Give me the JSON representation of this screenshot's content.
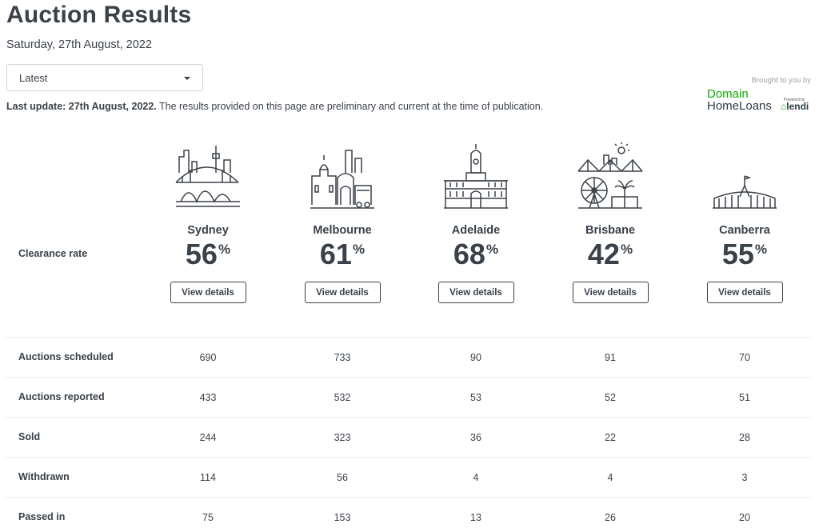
{
  "page": {
    "title": "Auction Results",
    "date": "Saturday, 27th August, 2022"
  },
  "filter": {
    "selected": "Latest"
  },
  "sponsor": {
    "brought_text": "Brought to you by",
    "logo_line1": "Domain",
    "logo_line2": "HomeLoans",
    "powered_text": "Powered by",
    "partner": "lendi"
  },
  "update": {
    "label": "Last update: 27th August, 2022.",
    "text": " The results provided on this page are preliminary and current at the time of publication."
  },
  "clearance_label": "Clearance rate",
  "view_label": "View details",
  "percent_sign": "%",
  "cities": [
    {
      "name": "Sydney",
      "rate": "56",
      "icon": "sydney-skyline-icon"
    },
    {
      "name": "Melbourne",
      "rate": "61",
      "icon": "melbourne-skyline-icon"
    },
    {
      "name": "Adelaide",
      "rate": "68",
      "icon": "adelaide-building-icon"
    },
    {
      "name": "Brisbane",
      "rate": "42",
      "icon": "brisbane-skyline-icon"
    },
    {
      "name": "Canberra",
      "rate": "55",
      "icon": "canberra-parliament-icon"
    }
  ],
  "stats": [
    {
      "label": "Auctions scheduled",
      "values": [
        "690",
        "733",
        "90",
        "91",
        "70"
      ]
    },
    {
      "label": "Auctions reported",
      "values": [
        "433",
        "532",
        "53",
        "52",
        "51"
      ]
    },
    {
      "label": "Sold",
      "values": [
        "244",
        "323",
        "36",
        "22",
        "28"
      ]
    },
    {
      "label": "Withdrawn",
      "values": [
        "114",
        "56",
        "4",
        "4",
        "3"
      ]
    },
    {
      "label": "Passed in",
      "values": [
        "75",
        "153",
        "13",
        "26",
        "20"
      ]
    }
  ],
  "colors": {
    "text": "#3b4149",
    "border": "#e6e8eb",
    "brand_green": "#0ea800"
  }
}
